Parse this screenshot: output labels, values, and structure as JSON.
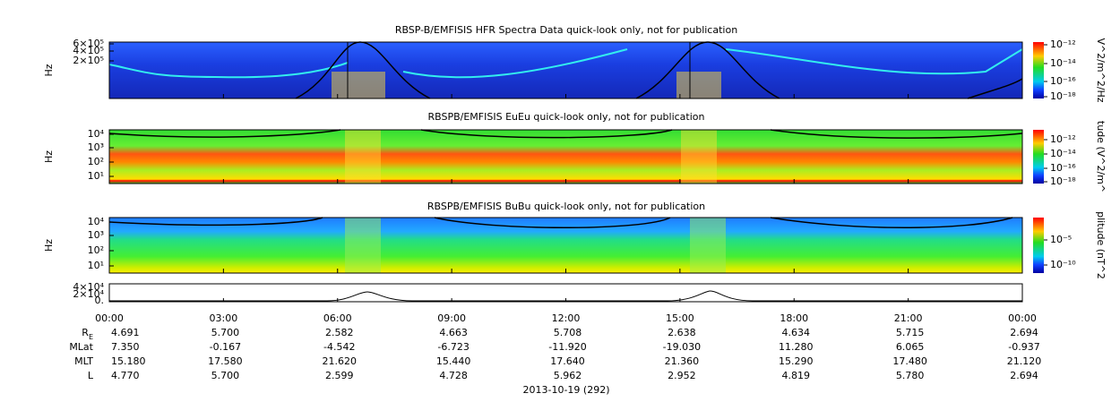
{
  "panels": [
    {
      "title": "RBSP-B/EMFISIS  HFR Spectra Data quick-look only, not for publication",
      "y_label": "Hz",
      "yticks": [
        "6×10⁵",
        "4×10⁵",
        "2×10⁵"
      ],
      "colorbar": {
        "label": "V^2/m^2/Hz",
        "ticks": [
          "10⁻¹²",
          "10⁻¹⁴",
          "10⁻¹⁶",
          "10⁻¹⁸"
        ]
      }
    },
    {
      "title": "RBSPB/EMFISIS  EuEu quick-look only, not for publication",
      "y_label": "Hz",
      "yticks": [
        "10⁴",
        "10³",
        "10²",
        "10¹"
      ],
      "colorbar": {
        "label": "tude (V^2/m^",
        "ticks": [
          "10⁻¹²",
          "10⁻¹⁴",
          "10⁻¹⁶",
          "10⁻¹⁸"
        ]
      }
    },
    {
      "title": "RBSPB/EMFISIS  BuBu quick-look only, not for publication",
      "y_label": "Hz",
      "yticks": [
        "10⁴",
        "10³",
        "10²",
        "10¹"
      ],
      "colorbar": {
        "label": "plitude (nT^2",
        "ticks": [
          "10⁻⁵",
          "10⁻¹⁰"
        ]
      }
    }
  ],
  "line_panel": {
    "yticks": [
      "4×10⁴",
      "2×10⁴",
      "0."
    ]
  },
  "x_ticks": [
    "00:00",
    "03:00",
    "06:00",
    "09:00",
    "12:00",
    "15:00",
    "18:00",
    "21:00",
    "00:00"
  ],
  "ephemeris": {
    "rows": [
      {
        "label": "R",
        "sub": "E",
        "values": [
          "4.691",
          "5.700",
          "2.582",
          "4.663",
          "5.708",
          "2.638",
          "4.634",
          "5.715",
          "2.694"
        ]
      },
      {
        "label": "MLat",
        "values": [
          "7.350",
          "-0.167",
          "-4.542",
          "-6.723",
          "-11.920",
          "-19.030",
          "11.280",
          "6.065",
          "-0.937"
        ]
      },
      {
        "label": "MLT",
        "values": [
          "15.180",
          "17.580",
          "21.620",
          "15.440",
          "17.640",
          "21.360",
          "15.290",
          "17.480",
          "21.120"
        ]
      },
      {
        "label": "L",
        "values": [
          "4.770",
          "5.700",
          "2.599",
          "4.728",
          "5.962",
          "2.952",
          "4.819",
          "5.780",
          "2.694"
        ]
      }
    ]
  },
  "date": "2013-10-19 (292)"
}
